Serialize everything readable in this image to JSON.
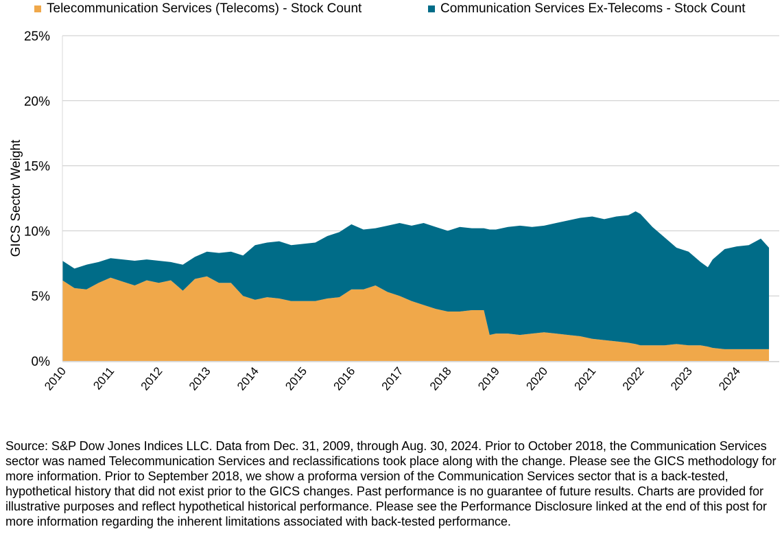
{
  "chart_data": {
    "type": "area",
    "stacked": true,
    "title": "",
    "xlabel": "",
    "ylabel": "GICS Sector Weight",
    "ylim": [
      0,
      25
    ],
    "xlim": [
      2010.0,
      2024.67
    ],
    "y_ticks": [
      0,
      5,
      10,
      15,
      20,
      25
    ],
    "y_tick_labels": [
      "0%",
      "5%",
      "10%",
      "15%",
      "20%",
      "25%"
    ],
    "x_ticks": [
      2010,
      2011,
      2012,
      2013,
      2014,
      2015,
      2016,
      2017,
      2018,
      2019,
      2020,
      2021,
      2022,
      2023,
      2024
    ],
    "x_tick_labels": [
      "2010",
      "2011",
      "2012",
      "2013",
      "2014",
      "2015",
      "2016",
      "2017",
      "2018",
      "2019",
      "2020",
      "2021",
      "2022",
      "2023",
      "2024"
    ],
    "grid": "horizontal",
    "legend_position": "top",
    "x": [
      2010.0,
      2010.25,
      2010.5,
      2010.75,
      2011.0,
      2011.25,
      2011.5,
      2011.75,
      2012.0,
      2012.25,
      2012.5,
      2012.75,
      2013.0,
      2013.25,
      2013.5,
      2013.75,
      2014.0,
      2014.25,
      2014.5,
      2014.75,
      2015.0,
      2015.25,
      2015.5,
      2015.75,
      2016.0,
      2016.25,
      2016.5,
      2016.75,
      2017.0,
      2017.25,
      2017.5,
      2017.75,
      2018.0,
      2018.25,
      2018.5,
      2018.75,
      2018.87,
      2019.0,
      2019.25,
      2019.5,
      2019.75,
      2020.0,
      2020.25,
      2020.5,
      2020.75,
      2021.0,
      2021.25,
      2021.5,
      2021.75,
      2021.9,
      2022.0,
      2022.25,
      2022.5,
      2022.75,
      2023.0,
      2023.25,
      2023.4,
      2023.5,
      2023.75,
      2024.0,
      2024.25,
      2024.5,
      2024.67
    ],
    "series": [
      {
        "name": "Telecommunication Services (Telecoms) - Stock Count",
        "color": "#F0A84A",
        "values": [
          6.2,
          5.6,
          5.5,
          6.0,
          6.4,
          6.1,
          5.8,
          6.2,
          6.0,
          6.2,
          5.4,
          6.3,
          6.5,
          6.0,
          6.0,
          5.0,
          4.7,
          4.9,
          4.8,
          4.6,
          4.6,
          4.6,
          4.8,
          4.9,
          5.5,
          5.5,
          5.8,
          5.3,
          5.0,
          4.6,
          4.3,
          4.0,
          3.8,
          3.8,
          3.9,
          3.9,
          2.0,
          2.1,
          2.1,
          2.0,
          2.1,
          2.2,
          2.1,
          2.0,
          1.9,
          1.7,
          1.6,
          1.5,
          1.4,
          1.3,
          1.2,
          1.2,
          1.2,
          1.3,
          1.2,
          1.2,
          1.1,
          1.0,
          0.9,
          0.9,
          0.9,
          0.9,
          0.9
        ]
      },
      {
        "name": "Communication Services Ex-Telecoms - Stock Count",
        "color": "#006C88",
        "values": [
          1.5,
          1.5,
          1.9,
          1.6,
          1.5,
          1.7,
          1.9,
          1.6,
          1.7,
          1.4,
          2.0,
          1.7,
          1.9,
          2.3,
          2.4,
          3.1,
          4.2,
          4.2,
          4.4,
          4.3,
          4.4,
          4.5,
          4.8,
          5.0,
          5.0,
          4.6,
          4.4,
          5.1,
          5.6,
          5.8,
          6.3,
          6.3,
          6.2,
          6.5,
          6.3,
          6.3,
          8.1,
          8.0,
          8.2,
          8.4,
          8.2,
          8.2,
          8.5,
          8.8,
          9.1,
          9.4,
          9.3,
          9.6,
          9.8,
          10.2,
          10.1,
          9.1,
          8.3,
          7.4,
          7.2,
          6.4,
          6.1,
          6.8,
          7.7,
          7.9,
          8.0,
          8.5,
          7.8
        ]
      }
    ]
  },
  "legend": {
    "items": [
      {
        "label": "Telecommunication Services (Telecoms) - Stock Count",
        "color": "#F0A84A"
      },
      {
        "label": "Communication Services Ex-Telecoms - Stock Count",
        "color": "#006C88"
      }
    ]
  },
  "footnote": {
    "text": "Source: S&P Dow Jones Indices LLC. Data from Dec. 31, 2009, through Aug. 30, 2024. Prior to October 2018, the Communication Services sector was named Telecommunication Services and reclassifications took place along with the change. Please see the GICS methodology for more information. Prior to September 2018, we show a proforma version of the Communication Services sector that is a back-tested, hypothetical history that did not exist prior to the GICS changes. Past performance is no guarantee of future results. Charts are provided for illustrative purposes and reflect hypothetical historical performance. Please see the Performance Disclosure linked at the end of this post for more information regarding the inherent limitations associated with back-tested performance."
  },
  "colors": {
    "telecoms": "#F0A84A",
    "ex_telecoms": "#006C88",
    "gridline": "#C8C8C8",
    "axis": "#D9D9D9"
  }
}
